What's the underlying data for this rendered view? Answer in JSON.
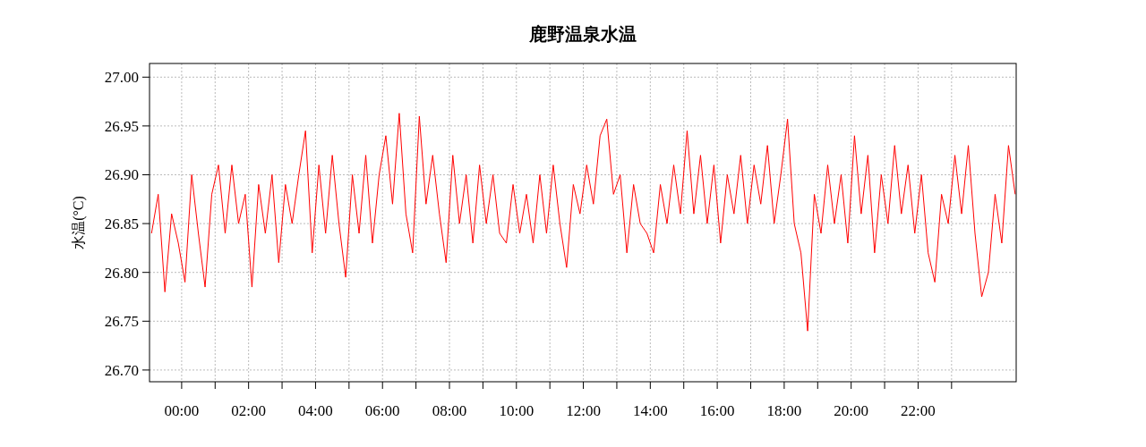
{
  "chart_data": {
    "type": "line",
    "title": "鹿野温泉水温",
    "ylabel": "水温(°C)",
    "x": [
      -0.9,
      -0.7,
      -0.5,
      -0.3,
      -0.1,
      0.1,
      0.3,
      0.5,
      0.7,
      0.9,
      1.1,
      1.3,
      1.5,
      1.7,
      1.9,
      2.1,
      2.3,
      2.5,
      2.7,
      2.9,
      3.1,
      3.3,
      3.5,
      3.7,
      3.9,
      4.1,
      4.3,
      4.5,
      4.7,
      4.9,
      5.1,
      5.3,
      5.5,
      5.7,
      5.9,
      6.1,
      6.3,
      6.5,
      6.7,
      6.9,
      7.1,
      7.3,
      7.5,
      7.7,
      7.9,
      8.1,
      8.3,
      8.5,
      8.7,
      8.9,
      9.1,
      9.3,
      9.5,
      9.7,
      9.9,
      10.1,
      10.3,
      10.5,
      10.7,
      10.9,
      11.1,
      11.3,
      11.5,
      11.7,
      11.9,
      12.1,
      12.3,
      12.5,
      12.7,
      12.9,
      13.1,
      13.3,
      13.5,
      13.7,
      13.9,
      14.1,
      14.3,
      14.5,
      14.7,
      14.9,
      15.1,
      15.3,
      15.5,
      15.7,
      15.9,
      16.1,
      16.3,
      16.5,
      16.7,
      16.9,
      17.1,
      17.3,
      17.5,
      17.7,
      17.9,
      18.1,
      18.3,
      18.5,
      18.7,
      18.9,
      19.1,
      19.3,
      19.5,
      19.7,
      19.9,
      20.1,
      20.3,
      20.5,
      20.7,
      20.9,
      21.1,
      21.3,
      21.5,
      21.7,
      21.9,
      22.1,
      22.3,
      22.5,
      22.7,
      22.9,
      23.1,
      23.3,
      23.5,
      23.7,
      23.9,
      24.1,
      24.3,
      24.5,
      24.7,
      24.9
    ],
    "series": [
      {
        "color": "#ff0000",
        "values": [
          26.84,
          26.88,
          26.78,
          26.86,
          26.83,
          26.79,
          26.9,
          26.84,
          26.785,
          26.88,
          26.91,
          26.84,
          26.91,
          26.85,
          26.88,
          26.785,
          26.89,
          26.84,
          26.9,
          26.81,
          26.89,
          26.85,
          26.9,
          26.945,
          26.82,
          26.91,
          26.84,
          26.92,
          26.85,
          26.795,
          26.9,
          26.84,
          26.92,
          26.83,
          26.9,
          26.94,
          26.87,
          26.963,
          26.86,
          26.82,
          26.96,
          26.87,
          26.92,
          26.86,
          26.81,
          26.92,
          26.85,
          26.9,
          26.83,
          26.91,
          26.85,
          26.9,
          26.84,
          26.83,
          26.89,
          26.84,
          26.88,
          26.83,
          26.9,
          26.84,
          26.91,
          26.85,
          26.805,
          26.89,
          26.86,
          26.91,
          26.87,
          26.94,
          26.957,
          26.88,
          26.9,
          26.82,
          26.89,
          26.85,
          26.84,
          26.82,
          26.89,
          26.85,
          26.91,
          26.86,
          26.945,
          26.86,
          26.92,
          26.85,
          26.91,
          26.83,
          26.9,
          26.86,
          26.92,
          26.85,
          26.91,
          26.87,
          26.93,
          26.85,
          26.9,
          26.957,
          26.85,
          26.82,
          26.74,
          26.88,
          26.84,
          26.91,
          26.85,
          26.9,
          26.83,
          26.94,
          26.86,
          26.92,
          26.82,
          26.9,
          26.85,
          26.93,
          26.86,
          26.91,
          26.84,
          26.9,
          26.82,
          26.79,
          26.88,
          26.85,
          26.92,
          26.86,
          26.93,
          26.84,
          26.775,
          26.8,
          26.88,
          26.83,
          26.93,
          26.88
        ]
      }
    ],
    "xlim": [
      -0.96,
      24.93
    ],
    "ylim": [
      26.688,
      27.014
    ],
    "xticks": [
      {
        "value": 0,
        "label": "00:00"
      },
      {
        "value": 1,
        "label": null
      },
      {
        "value": 2,
        "label": "02:00"
      },
      {
        "value": 3,
        "label": null
      },
      {
        "value": 4,
        "label": "04:00"
      },
      {
        "value": 5,
        "label": null
      },
      {
        "value": 6,
        "label": "06:00"
      },
      {
        "value": 7,
        "label": null
      },
      {
        "value": 8,
        "label": "08:00"
      },
      {
        "value": 9,
        "label": null
      },
      {
        "value": 10,
        "label": "10:00"
      },
      {
        "value": 11,
        "label": null
      },
      {
        "value": 12,
        "label": "12:00"
      },
      {
        "value": 13,
        "label": null
      },
      {
        "value": 14,
        "label": "14:00"
      },
      {
        "value": 15,
        "label": null
      },
      {
        "value": 16,
        "label": "16:00"
      },
      {
        "value": 17,
        "label": null
      },
      {
        "value": 18,
        "label": "18:00"
      },
      {
        "value": 19,
        "label": null
      },
      {
        "value": 20,
        "label": "20:00"
      },
      {
        "value": 21,
        "label": null
      },
      {
        "value": 22,
        "label": "22:00"
      },
      {
        "value": 23,
        "label": null
      }
    ],
    "yticks": [
      {
        "value": 26.7,
        "label": "26.70"
      },
      {
        "value": 26.75,
        "label": "26.75"
      },
      {
        "value": 26.8,
        "label": "26.80"
      },
      {
        "value": 26.85,
        "label": "26.85"
      },
      {
        "value": 26.9,
        "label": "26.90"
      },
      {
        "value": 26.95,
        "label": "26.95"
      },
      {
        "value": 27.0,
        "label": "27.00"
      }
    ],
    "grid": true,
    "marker": "none",
    "line_style": "solid"
  }
}
